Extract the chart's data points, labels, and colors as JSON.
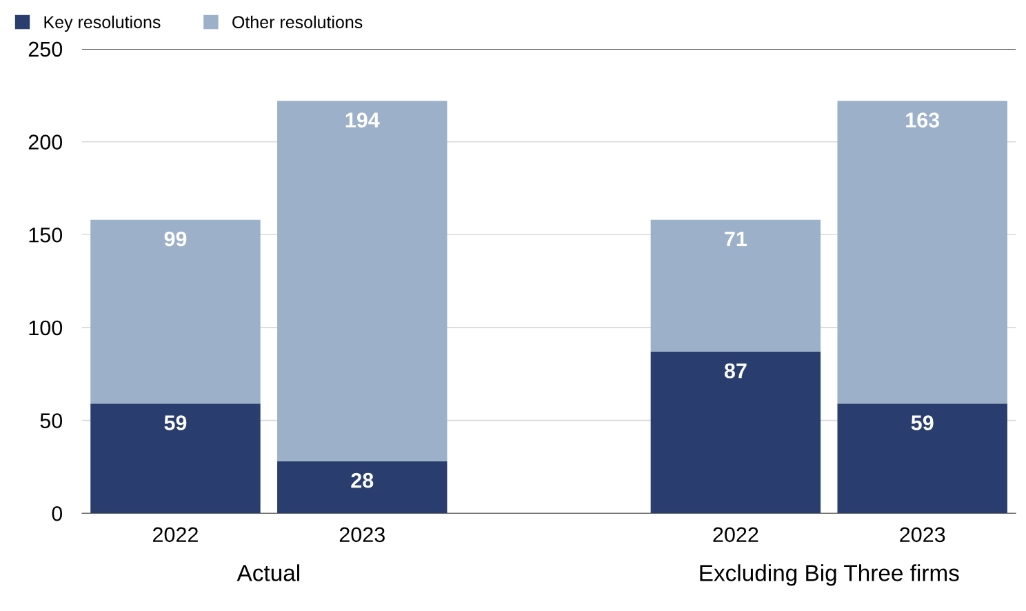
{
  "chart_data": {
    "type": "bar",
    "stacked": true,
    "categories": [
      "2022",
      "2023",
      null,
      "2022",
      "2023"
    ],
    "series": [
      {
        "name": "Key resolutions",
        "color": "#293e6e",
        "values": [
          59,
          28,
          null,
          87,
          59
        ]
      },
      {
        "name": "Other resolutions",
        "color": "#9cb0c9",
        "values": [
          99,
          194,
          null,
          71,
          163
        ]
      }
    ],
    "ylim": [
      0,
      250
    ],
    "yticks": [
      0,
      50,
      100,
      150,
      200,
      250
    ],
    "grid": "y",
    "legend": "top left",
    "data_labels": true,
    "annotations": [
      "Actual",
      "Excluding Big Three firms"
    ]
  }
}
